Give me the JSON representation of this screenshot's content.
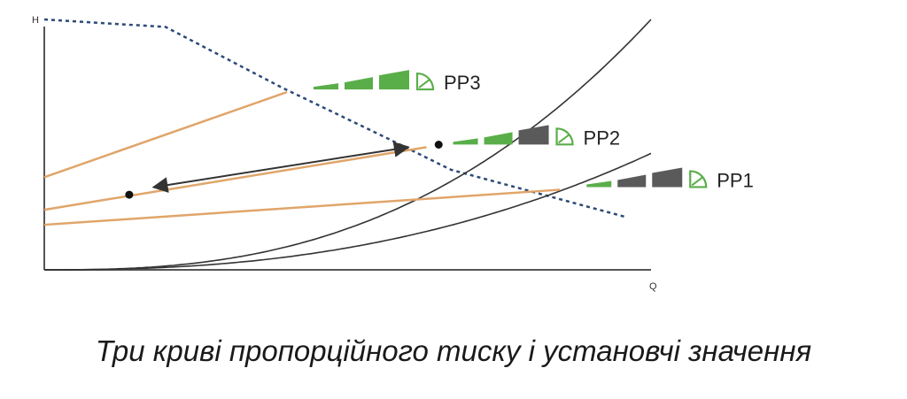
{
  "chart_data": {
    "type": "line",
    "title": "",
    "xlabel": "Q",
    "ylabel": "H",
    "xlim": [
      0,
      1
    ],
    "ylim": [
      0,
      1
    ],
    "grid": false,
    "max_curve": {
      "style": "dotted",
      "x": [
        0,
        0.2,
        0.39,
        0.57,
        0.67,
        0.96
      ],
      "y": [
        1.0,
        0.97,
        0.73,
        0.52,
        0.4,
        0.21
      ]
    },
    "system_curves": [
      {
        "k": 1.0,
        "exp": 2.6
      },
      {
        "k": 0.465,
        "exp": 2.4
      }
    ],
    "series": [
      {
        "name": "PP1",
        "x": [
          0,
          0.85
        ],
        "y": [
          0.18,
          0.32
        ],
        "intensity": 1
      },
      {
        "name": "PP2",
        "x": [
          0,
          0.63
        ],
        "y": [
          0.24,
          0.49
        ],
        "intensity": 2
      },
      {
        "name": "PP3",
        "x": [
          0,
          0.4
        ],
        "y": [
          0.37,
          0.71
        ],
        "intensity": 3
      }
    ],
    "operating_points": [
      {
        "x": 0.14,
        "y": 0.3
      },
      {
        "x": 0.65,
        "y": 0.5
      }
    ],
    "arrow": {
      "from": [
        0.18,
        0.33
      ],
      "to": [
        0.6,
        0.49
      ]
    },
    "colors": {
      "axis": "#555555",
      "series": "#e0a56a",
      "max_curve": "#2b4a78",
      "system_curve": "#333333",
      "arrow": "#333333",
      "point": "#111111",
      "bar_active": "#5aae4a",
      "bar_inactive": "#5a5a5a"
    },
    "icon": "proportional-pressure-icon"
  },
  "caption": "Три криві пропорційного тиску і установчі значення"
}
